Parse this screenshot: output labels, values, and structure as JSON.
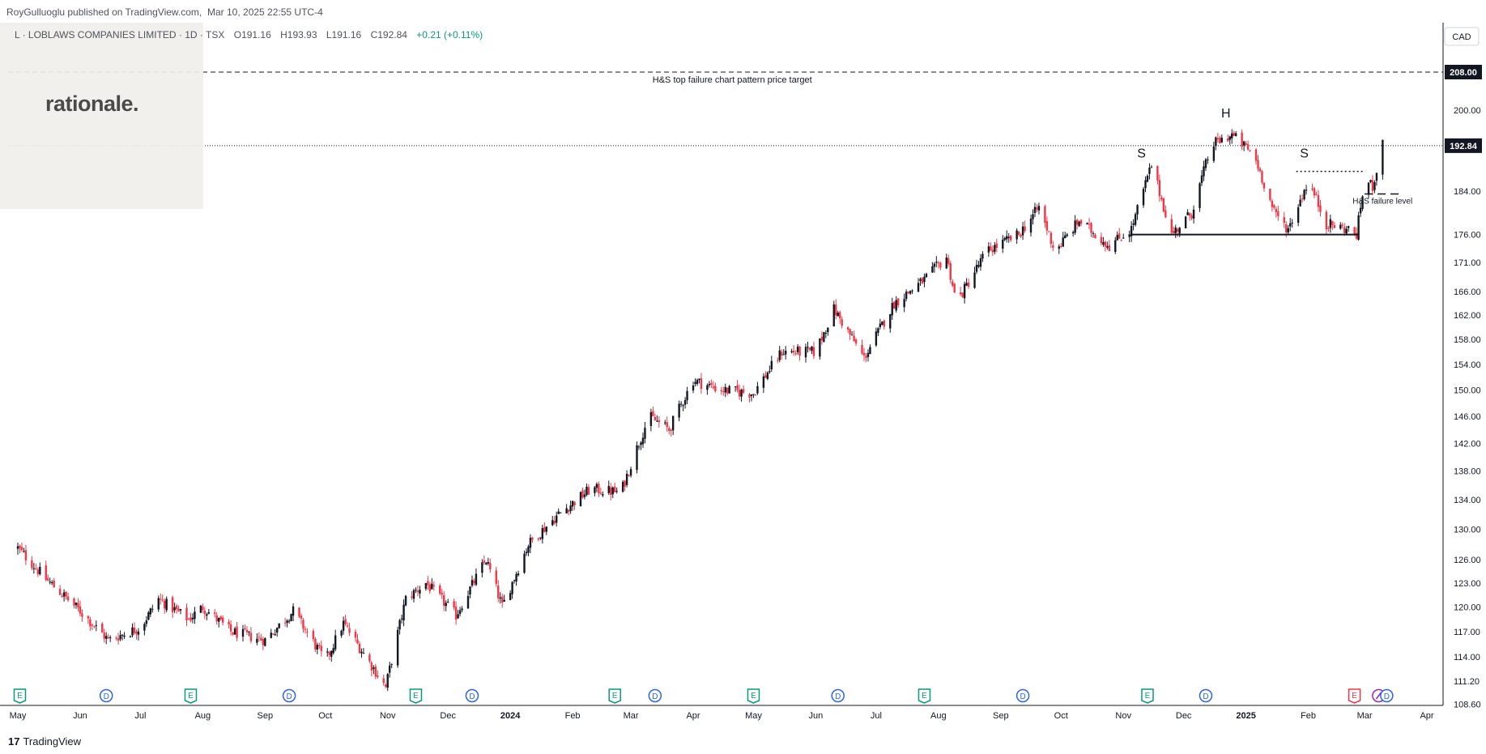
{
  "header": {
    "publisher": "RoyGulluoglu published on TradingView.com,",
    "date": "Mar 10, 2025 22:55 UTC-4"
  },
  "legend": {
    "symbol": "L · LOBLAWS COMPANIES LIMITED · 1D · TSX",
    "open": "O191.16",
    "high": "H193.93",
    "low": "L191.16",
    "close": "C192.84",
    "change": "+0.21 (+0.11%)"
  },
  "brand": {
    "logo_text": "rationale."
  },
  "currency": "CAD",
  "footer": {
    "logo_text": "TradingView",
    "logo_mark": "17"
  },
  "colors": {
    "up": "#131722",
    "down": "#f23645",
    "earnings": "#089981",
    "dividend": "#2962ff",
    "earnings_upcoming": "#f23645",
    "split": "#9c27b0"
  },
  "chart_data": {
    "type": "candlestick",
    "y_axis_ticks": [
      108.6,
      111.2,
      114.0,
      117.0,
      120.0,
      123.0,
      126.0,
      130.0,
      134.0,
      138.0,
      142.0,
      146.0,
      150.0,
      154.0,
      158.0,
      162.0,
      166.0,
      171.0,
      176.0,
      184.0,
      192.84,
      200.0,
      208.0
    ],
    "y_tick_labels": [
      "108.60",
      "111.20",
      "114.00",
      "117.00",
      "120.00",
      "123.00",
      "126.00",
      "130.00",
      "134.00",
      "138.00",
      "142.00",
      "146.00",
      "150.00",
      "154.00",
      "158.00",
      "162.00",
      "166.00",
      "171.00",
      "176.00",
      "184.00",
      "",
      "200.00",
      ""
    ],
    "y_scale": "log",
    "last_price": 192.84,
    "last_price_label": "192.84",
    "target_price": 208.0,
    "target_price_label": "208.00",
    "x_axis_labels": [
      "May",
      "Jun",
      "Jul",
      "Aug",
      "Sep",
      "Oct",
      "Nov",
      "Dec",
      "2024",
      "Feb",
      "Mar",
      "Apr",
      "May",
      "Jun",
      "Jul",
      "Aug",
      "Sep",
      "Oct",
      "Nov",
      "Dec",
      "2025",
      "Feb",
      "Mar",
      "Apr"
    ],
    "bold_x_labels": [
      "2024",
      "2025"
    ],
    "price_path": [
      [
        "2023-05-01",
        127.5
      ],
      [
        "2023-05-15",
        123.5
      ],
      [
        "2023-06-01",
        119.5
      ],
      [
        "2023-06-15",
        116.0
      ],
      [
        "2023-07-01",
        117.5
      ],
      [
        "2023-07-10",
        121.0
      ],
      [
        "2023-07-25",
        118.5
      ],
      [
        "2023-08-01",
        120.0
      ],
      [
        "2023-08-15",
        117.0
      ],
      [
        "2023-09-01",
        116.0
      ],
      [
        "2023-09-15",
        119.5
      ],
      [
        "2023-10-01",
        113.5
      ],
      [
        "2023-10-10",
        118.0
      ],
      [
        "2023-10-31",
        110.5
      ],
      [
        "2023-11-10",
        121.0
      ],
      [
        "2023-11-20",
        123.0
      ],
      [
        "2023-12-05",
        119.0
      ],
      [
        "2023-12-20",
        126.0
      ],
      [
        "2023-12-28",
        120.0
      ],
      [
        "2024-01-10",
        128.0
      ],
      [
        "2024-01-25",
        132.0
      ],
      [
        "2024-02-10",
        135.5
      ],
      [
        "2024-02-25",
        135.0
      ],
      [
        "2024-03-10",
        146.0
      ],
      [
        "2024-03-20",
        144.0
      ],
      [
        "2024-04-01",
        151.5
      ],
      [
        "2024-04-15",
        150.0
      ],
      [
        "2024-05-01",
        149.5
      ],
      [
        "2024-05-15",
        156.0
      ],
      [
        "2024-06-01",
        156.0
      ],
      [
        "2024-06-10",
        163.0
      ],
      [
        "2024-06-25",
        155.0
      ],
      [
        "2024-07-10",
        164.0
      ],
      [
        "2024-07-25",
        168.0
      ],
      [
        "2024-08-05",
        172.0
      ],
      [
        "2024-08-10",
        164.0
      ],
      [
        "2024-08-25",
        173.0
      ],
      [
        "2024-09-10",
        176.0
      ],
      [
        "2024-09-20",
        181.0
      ],
      [
        "2024-09-28",
        173.0
      ],
      [
        "2024-10-10",
        178.5
      ],
      [
        "2024-10-25",
        174.0
      ],
      [
        "2024-11-05",
        177.0
      ],
      [
        "2024-11-15",
        189.0
      ],
      [
        "2024-11-25",
        176.0
      ],
      [
        "2024-12-05",
        180.0
      ],
      [
        "2024-12-15",
        193.0
      ],
      [
        "2024-12-25",
        195.0
      ],
      [
        "2025-01-05",
        191.0
      ],
      [
        "2025-01-15",
        180.0
      ],
      [
        "2025-01-22",
        177.0
      ],
      [
        "2025-02-01",
        186.0
      ],
      [
        "2025-02-10",
        178.0
      ],
      [
        "2025-02-20",
        177.0
      ],
      [
        "2025-02-25",
        176.0
      ],
      [
        "2025-03-01",
        186.0
      ],
      [
        "2025-03-05",
        185.0
      ],
      [
        "2025-03-10",
        192.84
      ]
    ],
    "annotations": {
      "pattern_labels": [
        {
          "text": "S",
          "date": "2024-11-10",
          "price": 190.5
        },
        {
          "text": "H",
          "date": "2024-12-22",
          "price": 198.5
        },
        {
          "text": "S",
          "date": "2025-01-30",
          "price": 190.5
        }
      ],
      "neckline": {
        "from": "2024-11-05",
        "to": "2025-02-26",
        "price": 176.0
      },
      "shoulder_level": {
        "from": "2025-01-26",
        "to": "2025-03-01",
        "price": 187.8
      },
      "failure_level": {
        "text": "H&S failure level",
        "from": "2025-03-01",
        "to": "2025-03-20",
        "price": 183.5
      },
      "target": {
        "text": "H&S top failure chart pattern price target",
        "price": 208.0
      }
    },
    "events": [
      {
        "type": "E",
        "date": "2023-05-02"
      },
      {
        "type": "D",
        "date": "2023-06-14"
      },
      {
        "type": "E",
        "date": "2023-07-26"
      },
      {
        "type": "D",
        "date": "2023-09-13"
      },
      {
        "type": "E",
        "date": "2023-11-15"
      },
      {
        "type": "D",
        "date": "2023-12-13"
      },
      {
        "type": "E",
        "date": "2024-02-22"
      },
      {
        "type": "D",
        "date": "2024-03-13"
      },
      {
        "type": "E",
        "date": "2024-05-01"
      },
      {
        "type": "D",
        "date": "2024-06-12"
      },
      {
        "type": "E",
        "date": "2024-07-25"
      },
      {
        "type": "D",
        "date": "2024-09-12"
      },
      {
        "type": "E",
        "date": "2024-11-13"
      },
      {
        "type": "D",
        "date": "2024-12-12"
      },
      {
        "type": "E_upcoming",
        "date": "2025-02-24"
      },
      {
        "type": "split",
        "date": "2025-03-08"
      },
      {
        "type": "D",
        "date": "2025-03-12"
      }
    ]
  }
}
